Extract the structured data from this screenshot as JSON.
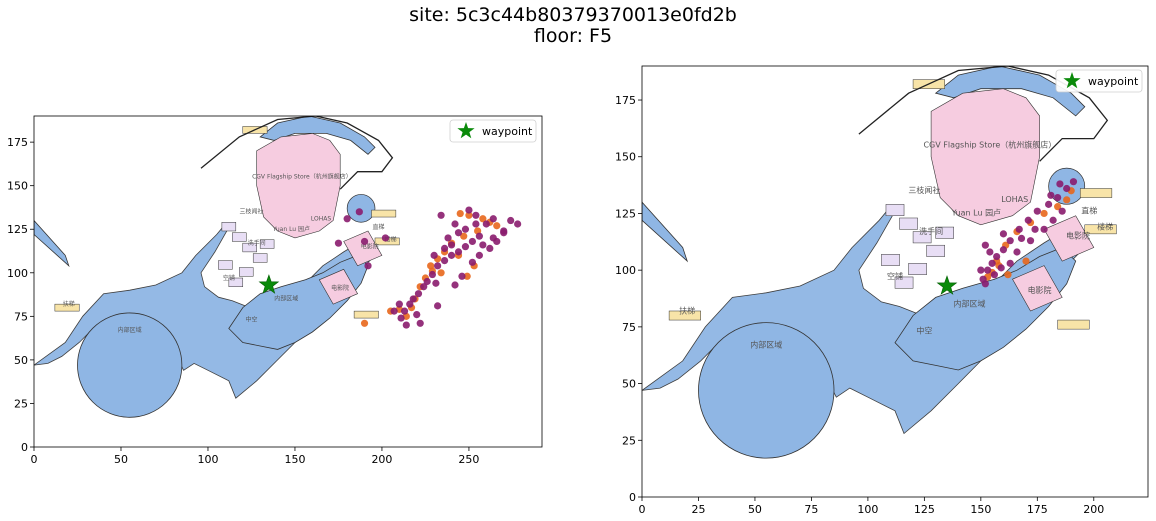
{
  "figure": {
    "title_line1": "site: 5c3c44b80379370013e0fd2b",
    "title_line2": "floor: F5"
  },
  "colors": {
    "corridor": "#8fb6e4",
    "shop": "#f6cce0",
    "stairs": "#f8e4a8",
    "service": "#e8def5",
    "outline": "#333333",
    "waypoint": "#0a8a0a",
    "dot_orange": "#e8671c",
    "dot_purple": "#8a1c6e"
  },
  "rooms": {
    "corridor": "内部区域",
    "flagship": "CGV Flagship Store（杭州旗舰店）",
    "stairs": "扶梯",
    "elevator": "直梯",
    "stairwell": "楼梯",
    "washroom": "洗手间",
    "cinema": "电影院",
    "atrium": "中空",
    "vacant": "空铺",
    "lohas": "LOHAS",
    "yuan_lu": "Yuan Lu 园卢",
    "sanchang": "三枝闻社",
    "barbershop": "精锐发型",
    "wall": "墙体"
  },
  "chart_data": [
    {
      "type": "scatter",
      "title": "",
      "xlabel": "",
      "ylabel": "",
      "xlim": [
        0,
        292
      ],
      "ylim": [
        0,
        190
      ],
      "xticks": [
        0,
        50,
        100,
        150,
        200,
        250
      ],
      "yticks": [
        0,
        25,
        50,
        75,
        100,
        125,
        150,
        175
      ],
      "legend": {
        "position": "top-right",
        "entries": [
          "waypoint"
        ]
      },
      "waypoint": {
        "x": 135,
        "y": 93
      },
      "series": [
        {
          "color": "orange",
          "points": [
            [
              245,
              134
            ],
            [
              250,
              133
            ],
            [
              258,
              131
            ],
            [
              262,
              129
            ],
            [
              266,
              127
            ],
            [
              255,
              124
            ],
            [
              247,
              121
            ],
            [
              240,
              117
            ],
            [
              236,
              112
            ],
            [
              232,
              108
            ],
            [
              228,
              104
            ],
            [
              225,
              97
            ],
            [
              222,
              92
            ],
            [
              219,
              85
            ],
            [
              217,
              80
            ],
            [
              214,
              75
            ],
            [
              210,
              79
            ],
            [
              205,
              78
            ],
            [
              190,
              71
            ],
            [
              253,
              104
            ],
            [
              249,
              98
            ],
            [
              244,
              110
            ],
            [
              234,
              100
            ],
            [
              229,
              101
            ]
          ]
        },
        {
          "color": "purple",
          "points": [
            [
              234,
              133
            ],
            [
              250,
              136
            ],
            [
              254,
              133
            ],
            [
              260,
              128
            ],
            [
              264,
              131
            ],
            [
              270,
              123
            ],
            [
              278,
              128
            ],
            [
              256,
              121
            ],
            [
              252,
              118
            ],
            [
              248,
              115
            ],
            [
              244,
              112
            ],
            [
              240,
              110
            ],
            [
              236,
              107
            ],
            [
              232,
              104
            ],
            [
              229,
              99
            ],
            [
              226,
              95
            ],
            [
              224,
              92
            ],
            [
              221,
              88
            ],
            [
              218,
              85
            ],
            [
              216,
              82
            ],
            [
              213,
              78
            ],
            [
              211,
              74
            ],
            [
              207,
              78
            ],
            [
              210,
              82
            ],
            [
              222,
              71
            ],
            [
              232,
              81
            ],
            [
              242,
              93
            ],
            [
              246,
              98
            ],
            [
              252,
              106
            ],
            [
              256,
              110
            ],
            [
              262,
              114
            ],
            [
              266,
              118
            ],
            [
              270,
              124
            ],
            [
              274,
              130
            ],
            [
              238,
              120
            ],
            [
              244,
              123
            ],
            [
              248,
              125
            ],
            [
              264,
              120
            ],
            [
              258,
              116
            ],
            [
              254,
              128
            ],
            [
              242,
              128
            ],
            [
              236,
              114
            ],
            [
              231,
              94
            ],
            [
              220,
              76
            ],
            [
              214,
              70
            ],
            [
              192,
              104
            ],
            [
              190,
              118
            ],
            [
              202,
              120
            ],
            [
              180,
              131
            ],
            [
              187,
              135
            ],
            [
              175,
              117
            ],
            [
              230,
              110
            ],
            [
              240,
              116
            ]
          ]
        }
      ]
    },
    {
      "type": "scatter",
      "title": "",
      "xlabel": "",
      "ylabel": "",
      "xlim": [
        0,
        224
      ],
      "ylim": [
        0,
        190
      ],
      "xticks": [
        0,
        25,
        50,
        75,
        100,
        125,
        150,
        175,
        200
      ],
      "yticks": [
        0,
        25,
        50,
        75,
        100,
        125,
        150,
        175
      ],
      "legend": {
        "position": "top-right",
        "entries": [
          "waypoint"
        ]
      },
      "waypoint": {
        "x": 135,
        "y": 93
      },
      "series": [
        {
          "color": "orange",
          "points": [
            [
              153,
              97
            ],
            [
              157,
              104
            ],
            [
              161,
              111
            ],
            [
              166,
              117
            ],
            [
              172,
              121
            ],
            [
              178,
              125
            ],
            [
              184,
              128
            ],
            [
              188,
              131
            ],
            [
              190,
              135
            ],
            [
              170,
              104
            ],
            [
              162,
              98
            ],
            [
              158,
              102
            ],
            [
              155,
              99
            ]
          ]
        },
        {
          "color": "purple",
          "points": [
            [
              151,
              96
            ],
            [
              153,
              100
            ],
            [
              155,
              103
            ],
            [
              157,
              106
            ],
            [
              160,
              109
            ],
            [
              163,
              113
            ],
            [
              167,
              118
            ],
            [
              171,
              122
            ],
            [
              175,
              126
            ],
            [
              180,
              129
            ],
            [
              184,
              132
            ],
            [
              188,
              136
            ],
            [
              191,
              139
            ],
            [
              186,
              126
            ],
            [
              182,
              122
            ],
            [
              178,
              118
            ],
            [
              172,
              113
            ],
            [
              166,
              108
            ],
            [
              163,
              103
            ],
            [
              159,
              101
            ],
            [
              156,
              98
            ],
            [
              152,
              94
            ],
            [
              154,
              108
            ],
            [
              160,
              116
            ],
            [
              168,
              114
            ],
            [
              174,
              118
            ],
            [
              181,
              133
            ],
            [
              185,
              138
            ],
            [
              152,
              111
            ],
            [
              150,
              100
            ]
          ]
        }
      ]
    }
  ]
}
